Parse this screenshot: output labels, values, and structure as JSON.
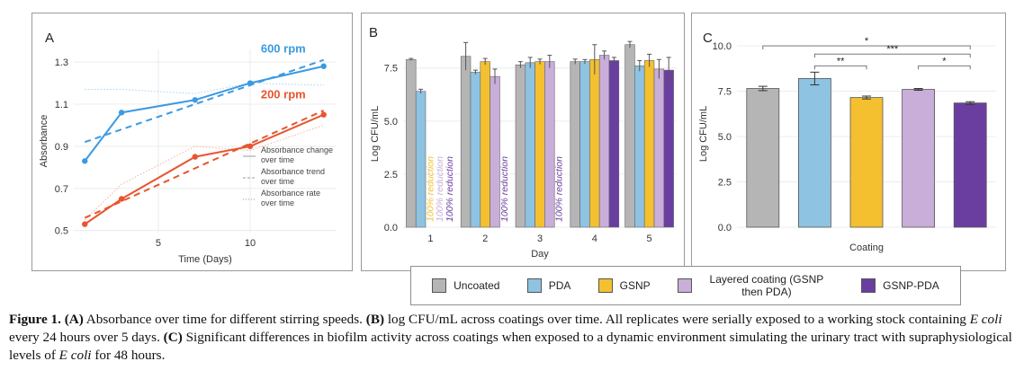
{
  "panels": [
    {
      "label": "A",
      "type": "line",
      "xlabel": "Time (Days)",
      "ylabel": "Absorbance",
      "xlim": [
        0.4,
        14.7
      ],
      "ylim": [
        0.49,
        1.36
      ],
      "xticks": [
        5,
        10
      ],
      "yticks": [
        0.5,
        0.7,
        0.9,
        1.1,
        1.3
      ],
      "grid": true,
      "series": [
        {
          "name": "600 rpm",
          "color": "#3b9ae1",
          "x": [
            1,
            3,
            7,
            10,
            14
          ],
          "y": [
            0.83,
            1.06,
            1.12,
            1.2,
            1.28
          ],
          "trend": {
            "x": [
              1,
              14
            ],
            "y": [
              0.92,
              1.31
            ]
          },
          "rate": {
            "x": [
              1,
              3,
              7,
              10,
              14
            ],
            "y": [
              1.17,
              1.17,
              1.15,
              1.2,
              1.19
            ]
          }
        },
        {
          "name": "200 rpm",
          "color": "#e8552f",
          "x": [
            1,
            3,
            7,
            10,
            14
          ],
          "y": [
            0.53,
            0.65,
            0.85,
            0.9,
            1.05
          ],
          "trend": {
            "x": [
              1,
              14
            ],
            "y": [
              0.56,
              1.07
            ]
          },
          "rate": {
            "x": [
              1,
              3,
              7,
              10,
              14
            ],
            "y": [
              0.55,
              0.72,
              0.9,
              0.88,
              1.0
            ]
          }
        }
      ],
      "legend": [
        "Absorbance change over time",
        "Absorbance trend over time",
        "Absorbance rate over time"
      ]
    },
    {
      "label": "B",
      "type": "bar",
      "xlabel": "Day",
      "ylabel": "Log CFU/mL",
      "ylim": [
        0,
        8.8
      ],
      "yticks": [
        0.0,
        2.5,
        5.0,
        7.5
      ],
      "yticklabels": [
        "0.0",
        "2.5",
        "5.0",
        "7.5"
      ],
      "grid": true,
      "categories": [
        "1",
        "2",
        "3",
        "4",
        "5"
      ],
      "series": [
        {
          "name": "Uncoated",
          "values": [
            7.9,
            8.05,
            7.65,
            7.8,
            8.6
          ],
          "errors": [
            0.05,
            0.65,
            0.15,
            0.12,
            0.15
          ]
        },
        {
          "name": "PDA",
          "values": [
            6.4,
            7.3,
            7.75,
            7.8,
            7.6
          ],
          "errors": [
            0.1,
            0.1,
            0.25,
            0.1,
            0.25
          ]
        },
        {
          "name": "GSNP",
          "values": [
            0,
            7.8,
            7.8,
            7.9,
            7.85
          ],
          "errors": [
            0,
            0.15,
            0.12,
            0.7,
            0.3
          ]
        },
        {
          "name": "Layered coating (GSNP then PDA)",
          "values": [
            0,
            7.1,
            7.8,
            8.1,
            7.45
          ],
          "errors": [
            0,
            0.35,
            0.3,
            0.2,
            0.45
          ]
        },
        {
          "name": "GSNP-PDA",
          "values": [
            0,
            0,
            0,
            7.85,
            7.4
          ],
          "errors": [
            0,
            0,
            0,
            0.15,
            0.6
          ]
        }
      ],
      "annotations": [
        {
          "text": "100% reduction",
          "category": "1",
          "series": "GSNP"
        },
        {
          "text": "100% reduction",
          "category": "1",
          "series": "Layered coating (GSNP then PDA)"
        },
        {
          "text": "100% reduction",
          "category": "1",
          "series": "GSNP-PDA"
        },
        {
          "text": "100% reduction",
          "category": "2",
          "series": "GSNP-PDA"
        },
        {
          "text": "100% reduction",
          "category": "3",
          "series": "GSNP-PDA"
        }
      ]
    },
    {
      "label": "C",
      "type": "bar",
      "xlabel": "Coating",
      "ylabel": "Log CFU/mL",
      "ylim": [
        0,
        10.3
      ],
      "yticks": [
        0.0,
        2.5,
        5.0,
        7.5,
        10.0
      ],
      "yticklabels": [
        "0.0",
        "2.5",
        "5.0",
        "7.5",
        "10.0"
      ],
      "grid": true,
      "categories": [
        "Uncoated",
        "PDA",
        "GSNP",
        "Layered coating (GSNP then PDA)",
        "GSNP-PDA"
      ],
      "values": [
        7.65,
        8.2,
        7.15,
        7.6,
        6.85
      ],
      "errors": [
        0.12,
        0.35,
        0.08,
        0.05,
        0.07
      ],
      "significance": [
        {
          "from": 0,
          "to": 4,
          "label": "*",
          "y": 10.0
        },
        {
          "from": 1,
          "to": 4,
          "label": "***",
          "y": 9.55
        },
        {
          "from": 1,
          "to": 2,
          "label": "**",
          "y": 8.9
        },
        {
          "from": 3,
          "to": 4,
          "label": "*",
          "y": 8.9
        }
      ]
    }
  ],
  "colors": {
    "Uncoated": "#b5b5b5",
    "PDA": "#8ec3e2",
    "GSNP": "#f4c030",
    "Layered coating (GSNP then PDA)": "#c8aed8",
    "GSNP-PDA": "#6a3ea1"
  },
  "legend": {
    "items": [
      {
        "label": "Uncoated",
        "color": "#b5b5b5"
      },
      {
        "label": "PDA",
        "color": "#8ec3e2"
      },
      {
        "label": "GSNP",
        "color": "#f4c030"
      },
      {
        "label": "Layered coating (GSNP then PDA)",
        "color": "#c8aed8"
      },
      {
        "label": "GSNP-PDA",
        "color": "#6a3ea1"
      }
    ]
  },
  "caption": {
    "fig": "Figure 1.",
    "a": "(A)",
    "a_text": " Absorbance over time for different stirring speeds. ",
    "b": "(B)",
    "b_text": " log CFU/mL across coatings over time. All replicates were serially exposed to a working stock containing ",
    "ecoli1": "E coli",
    "b_text2": " every 24 hours over 5 days. ",
    "c": "(C)",
    "c_text": " Significant differences in biofilm activity across coatings when exposed to a dynamic environment simulating the urinary tract with supraphysiological levels of ",
    "ecoli2": "E coli",
    "c_text2": " for 48 hours."
  }
}
